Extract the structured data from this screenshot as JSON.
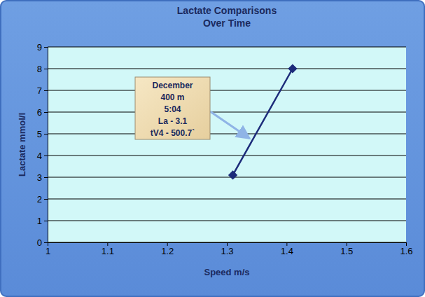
{
  "chart_data": {
    "type": "line",
    "title": "Lactate Comparisons",
    "subtitle": "Over Time",
    "x_label": "Speed m/s",
    "y_label": "Lactate mmol/l",
    "series": [
      {
        "name": "December",
        "color": "#1c2b7a",
        "marker": "diamond",
        "x": [
          1.31,
          1.41
        ],
        "values": [
          3.1,
          8.0
        ]
      }
    ],
    "xlim": [
      1,
      1.6
    ],
    "xticks": [
      1,
      1.1,
      1.2,
      1.3,
      1.4,
      1.5,
      1.6
    ],
    "ylim": [
      0,
      9
    ],
    "yticks": [
      0,
      1,
      2,
      3,
      4,
      5,
      6,
      7,
      8,
      9
    ],
    "grid": true,
    "annotations": [
      {
        "text": [
          "December",
          "400 m",
          "5:04",
          "La - 3.1",
          "tV4 - 500.7`"
        ]
      }
    ]
  }
}
